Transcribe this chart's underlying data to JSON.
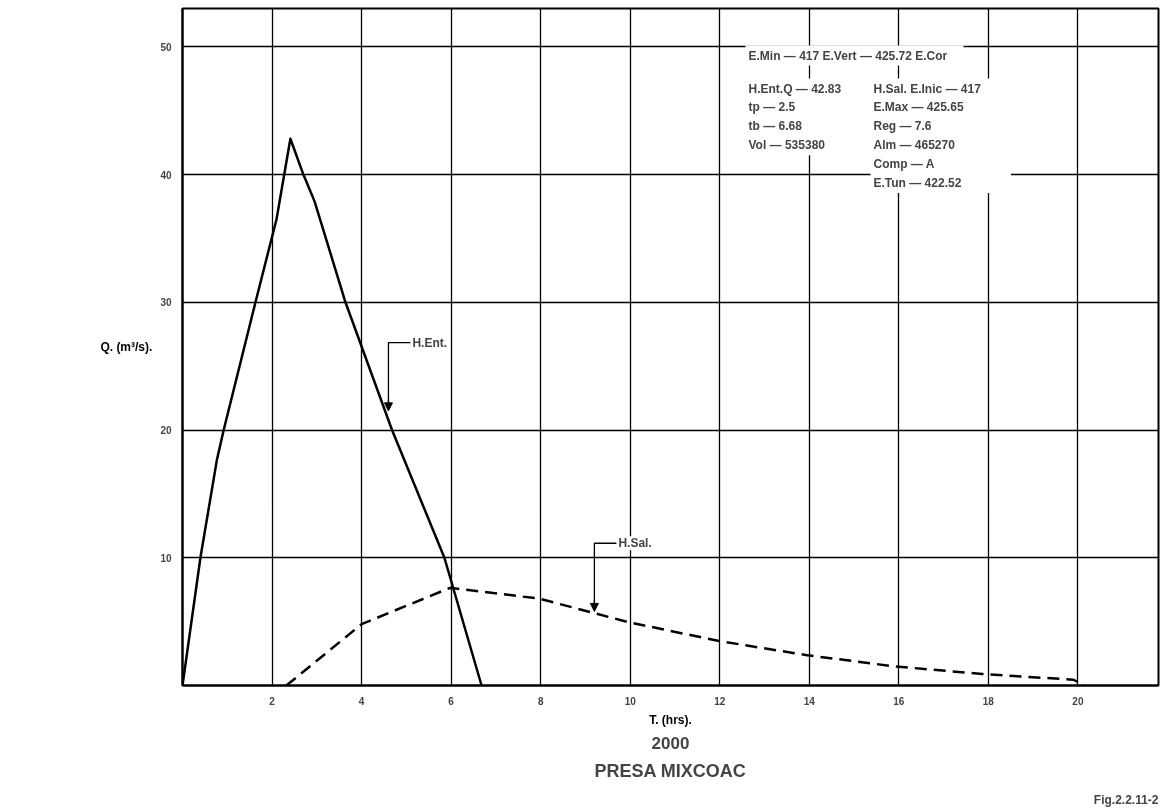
{
  "chart_data": {
    "type": "line",
    "title": "PRESA MIXCOAC",
    "subtitle": "2000",
    "xlabel": "T. (hrs).",
    "ylabel": "Q. (m³/s).",
    "xlim": [
      0,
      21.8
    ],
    "ylim": [
      0,
      53
    ],
    "xticks": [
      2,
      4,
      6,
      8,
      10,
      12,
      14,
      16,
      18,
      20
    ],
    "yticks": [
      10,
      20,
      30,
      40,
      50
    ],
    "grid": true,
    "marker": "none",
    "series": [
      {
        "color": "#000000",
        "line_style": "solid",
        "x": [
          0,
          0.4,
          0.77,
          0.92,
          1.63,
          2.1,
          2.41,
          2.7,
          2.95,
          3.64,
          4.68,
          5.85,
          6.68
        ],
        "values": [
          0,
          10,
          17.7,
          20,
          30,
          36.5,
          42.8,
          40,
          37.9,
          30,
          20,
          10,
          0
        ]
      },
      {
        "color": "#000000",
        "line_style": "dashed",
        "x": [
          2.32,
          4.0,
          5.98,
          7.97,
          9.96,
          11.96,
          13.95,
          15.9,
          17.86,
          19.9,
          20.15
        ],
        "values": [
          0,
          4.8,
          7.65,
          6.8,
          4.96,
          3.5,
          2.37,
          1.5,
          0.9,
          0.45,
          0
        ]
      }
    ],
    "annotations": [
      "E.Min — 417   E.Vert — 425.72   E.Cor",
      "H.Ent.Q — 42.83\n      tp — 2.5\n      tb — 6.68\n    Vol — 535380",
      "H.Sal. E.Inic — 417\n            E.Max — 425.65\n             Reg — 7.6\n             Alm — 465270\n             Comp — A\n              E.Tun — 422.52",
      {
        "text": "H.Ent.",
        "x": 4.6,
        "y": 21.5
      },
      {
        "text": "H.Sal.",
        "x": 9.2,
        "y": 5.8
      },
      "Fig.2.2.11-2"
    ]
  }
}
